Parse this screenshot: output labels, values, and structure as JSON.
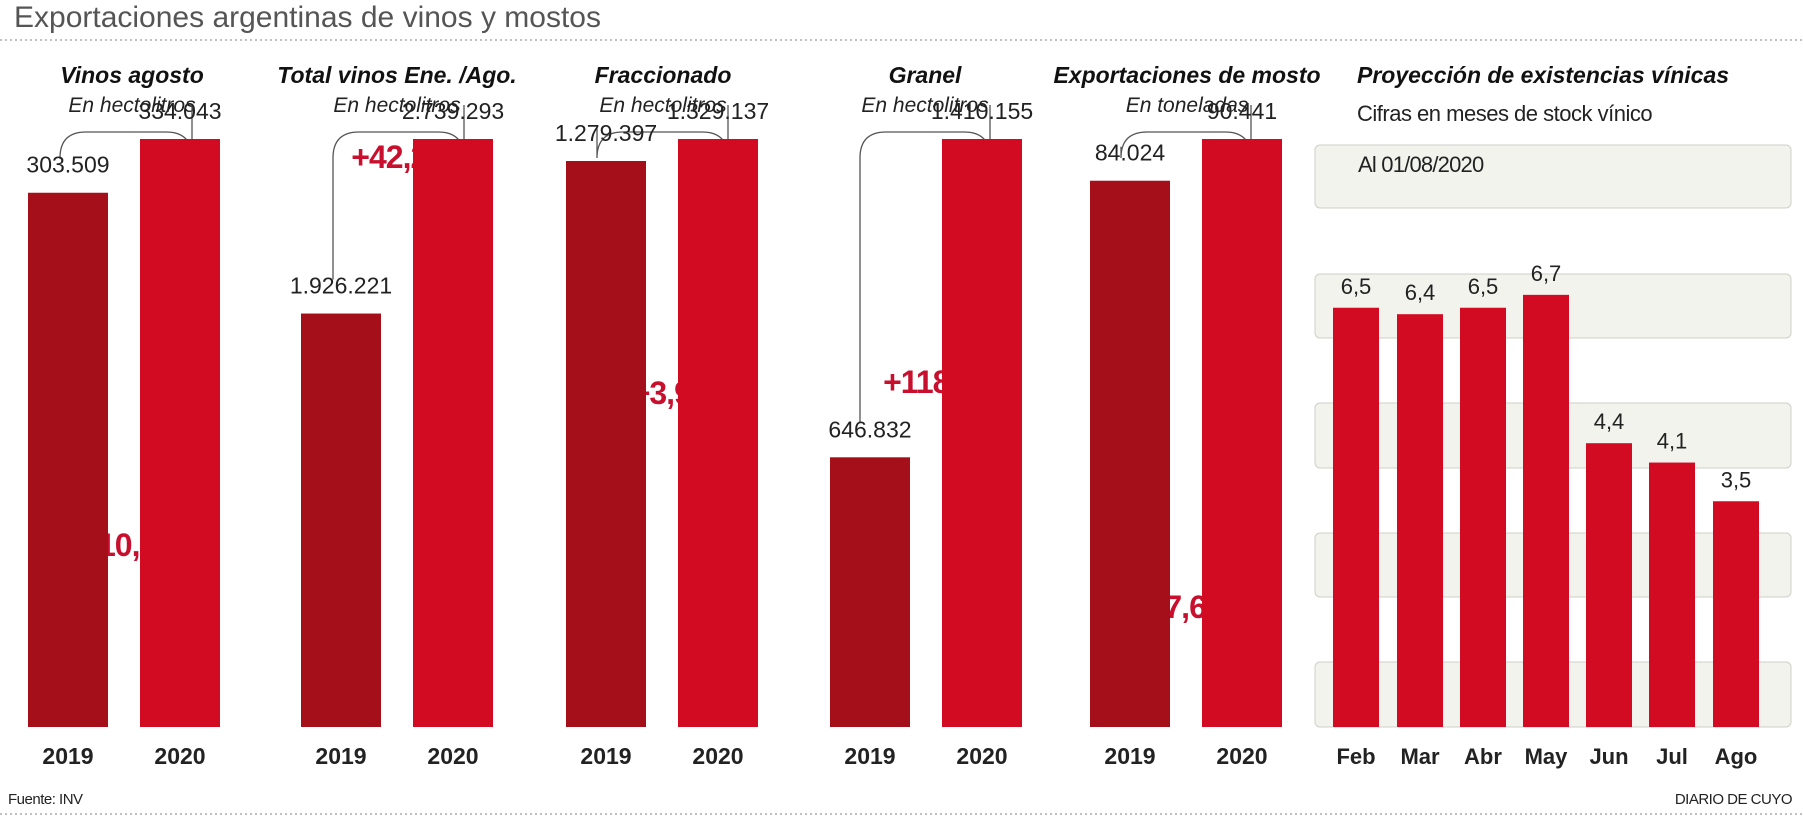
{
  "title": "Exportaciones argentinas de vinos y mostos",
  "source": "Fuente: INV",
  "publisher": "DIARIO DE CUYO",
  "colors": {
    "bar_2019": "#a50f1a",
    "bar_2020": "#d20a22",
    "bar_stock": "#d20a22",
    "pct": "#c8102e",
    "band": "#f3f3ee",
    "band_border": "#cfcfc8",
    "bracket": "#555555"
  },
  "chart_data": [
    {
      "type": "bar",
      "title": "Vinos agosto",
      "subtitle": "En hectolitros",
      "categories": [
        "2019",
        "2020"
      ],
      "values": [
        303509,
        334043
      ],
      "value_labels": [
        "303.509",
        "334.043"
      ],
      "change_label": "+10,1%"
    },
    {
      "type": "bar",
      "title": "Total vinos Ene. /Ago.",
      "subtitle": "En hectolitros",
      "categories": [
        "2019",
        "2020"
      ],
      "values": [
        1926221,
        2739293
      ],
      "value_labels": [
        "1.926.221",
        "2.739.293"
      ],
      "change_label": "+42,2%"
    },
    {
      "type": "bar",
      "title": "Fraccionado",
      "subtitle": "En hectolitros",
      "categories": [
        "2019",
        "2020"
      ],
      "values": [
        1279397,
        1329137
      ],
      "value_labels": [
        "1.279.397",
        "1.329.137"
      ],
      "change_label": "+3,9%"
    },
    {
      "type": "bar",
      "title": "Granel",
      "subtitle": "En hectolitros",
      "categories": [
        "2019",
        "2020"
      ],
      "values": [
        646832,
        1410155
      ],
      "value_labels": [
        "646.832",
        "1.410.155"
      ],
      "change_label": "+118%"
    },
    {
      "type": "bar",
      "title": "Exportaciones de mosto",
      "subtitle": "En toneladas",
      "categories": [
        "2019",
        "2020"
      ],
      "values": [
        84024,
        90441
      ],
      "value_labels": [
        "84.024",
        "90.441"
      ],
      "change_label": "+7,6%"
    },
    {
      "type": "bar",
      "title": "Proyección de existencias vínicas",
      "subtitle": "Cifras en meses de stock vínico",
      "note": "Al 01/08/2020",
      "categories": [
        "Feb",
        "Mar",
        "Abr",
        "May",
        "Jun",
        "Jul",
        "Ago"
      ],
      "values": [
        6.5,
        6.4,
        6.5,
        6.7,
        4.4,
        4.1,
        3.5
      ],
      "value_labels": [
        "6,5",
        "6,4",
        "6,5",
        "6,7",
        "4,4",
        "4,1",
        "3,5"
      ]
    }
  ]
}
